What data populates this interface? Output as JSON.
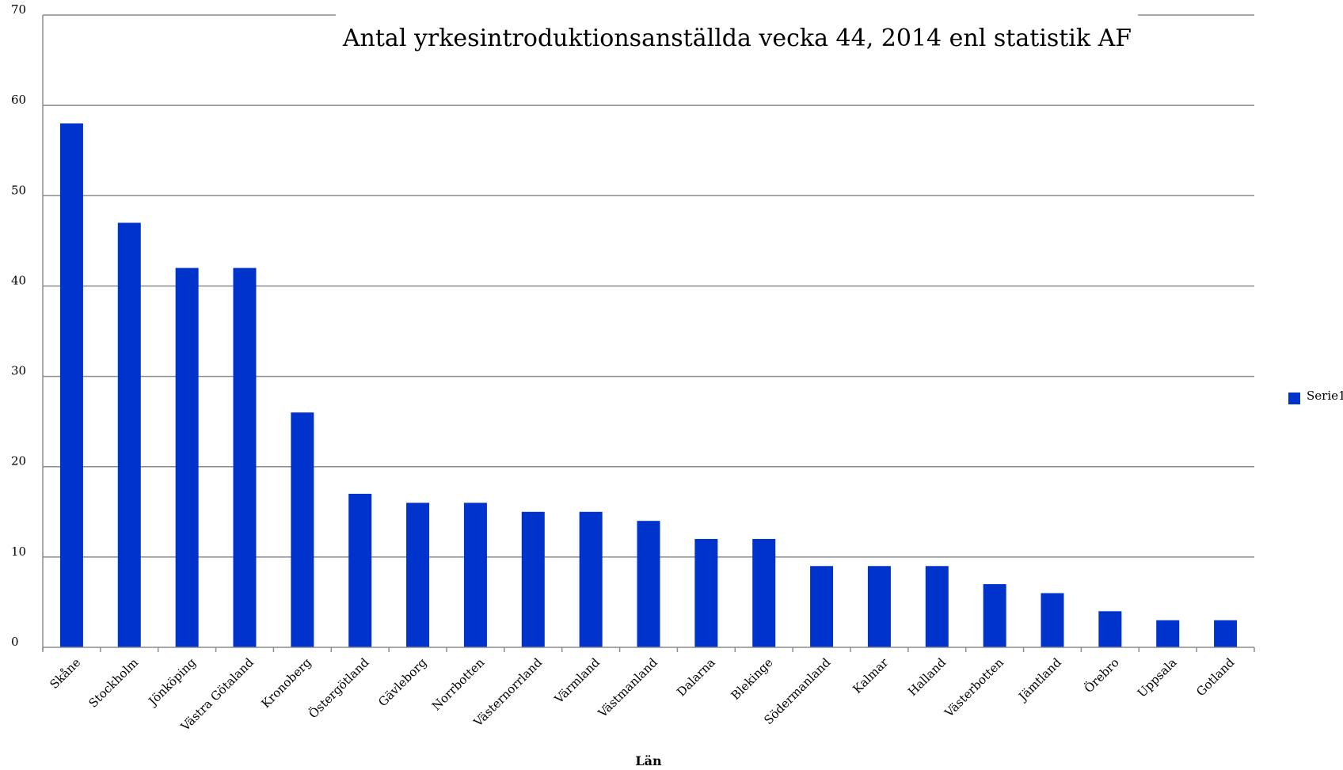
{
  "chart_data": {
    "type": "bar",
    "title": "Antal yrkesintroduktionsanställda  vecka 44, 2014 enl statistik AF",
    "xlabel": "Län",
    "ylabel": "",
    "ylim": [
      0,
      70
    ],
    "yticks": [
      0,
      10,
      20,
      30,
      40,
      50,
      60,
      70
    ],
    "grid": true,
    "legend_position": "right",
    "categories": [
      "Skåne",
      "Stockholm",
      "Jönköping",
      "Västra Götaland",
      "Kronoberg",
      "Östergötland",
      "Gävleborg",
      "Norrbotten",
      "Västernorrland",
      "Värmland",
      "Västmanland",
      "Dalarna",
      "Blekinge",
      "Södermanland",
      "Kalmar",
      "Halland",
      "Västerbotten",
      "Jämtland",
      "Örebro",
      "Uppsala",
      "Gotland"
    ],
    "series": [
      {
        "name": "Serie1",
        "color": "#0033cc",
        "values": [
          58,
          47,
          42,
          42,
          26,
          17,
          16,
          16,
          15,
          15,
          14,
          12,
          12,
          9,
          9,
          9,
          7,
          6,
          4,
          3,
          3
        ]
      }
    ]
  }
}
